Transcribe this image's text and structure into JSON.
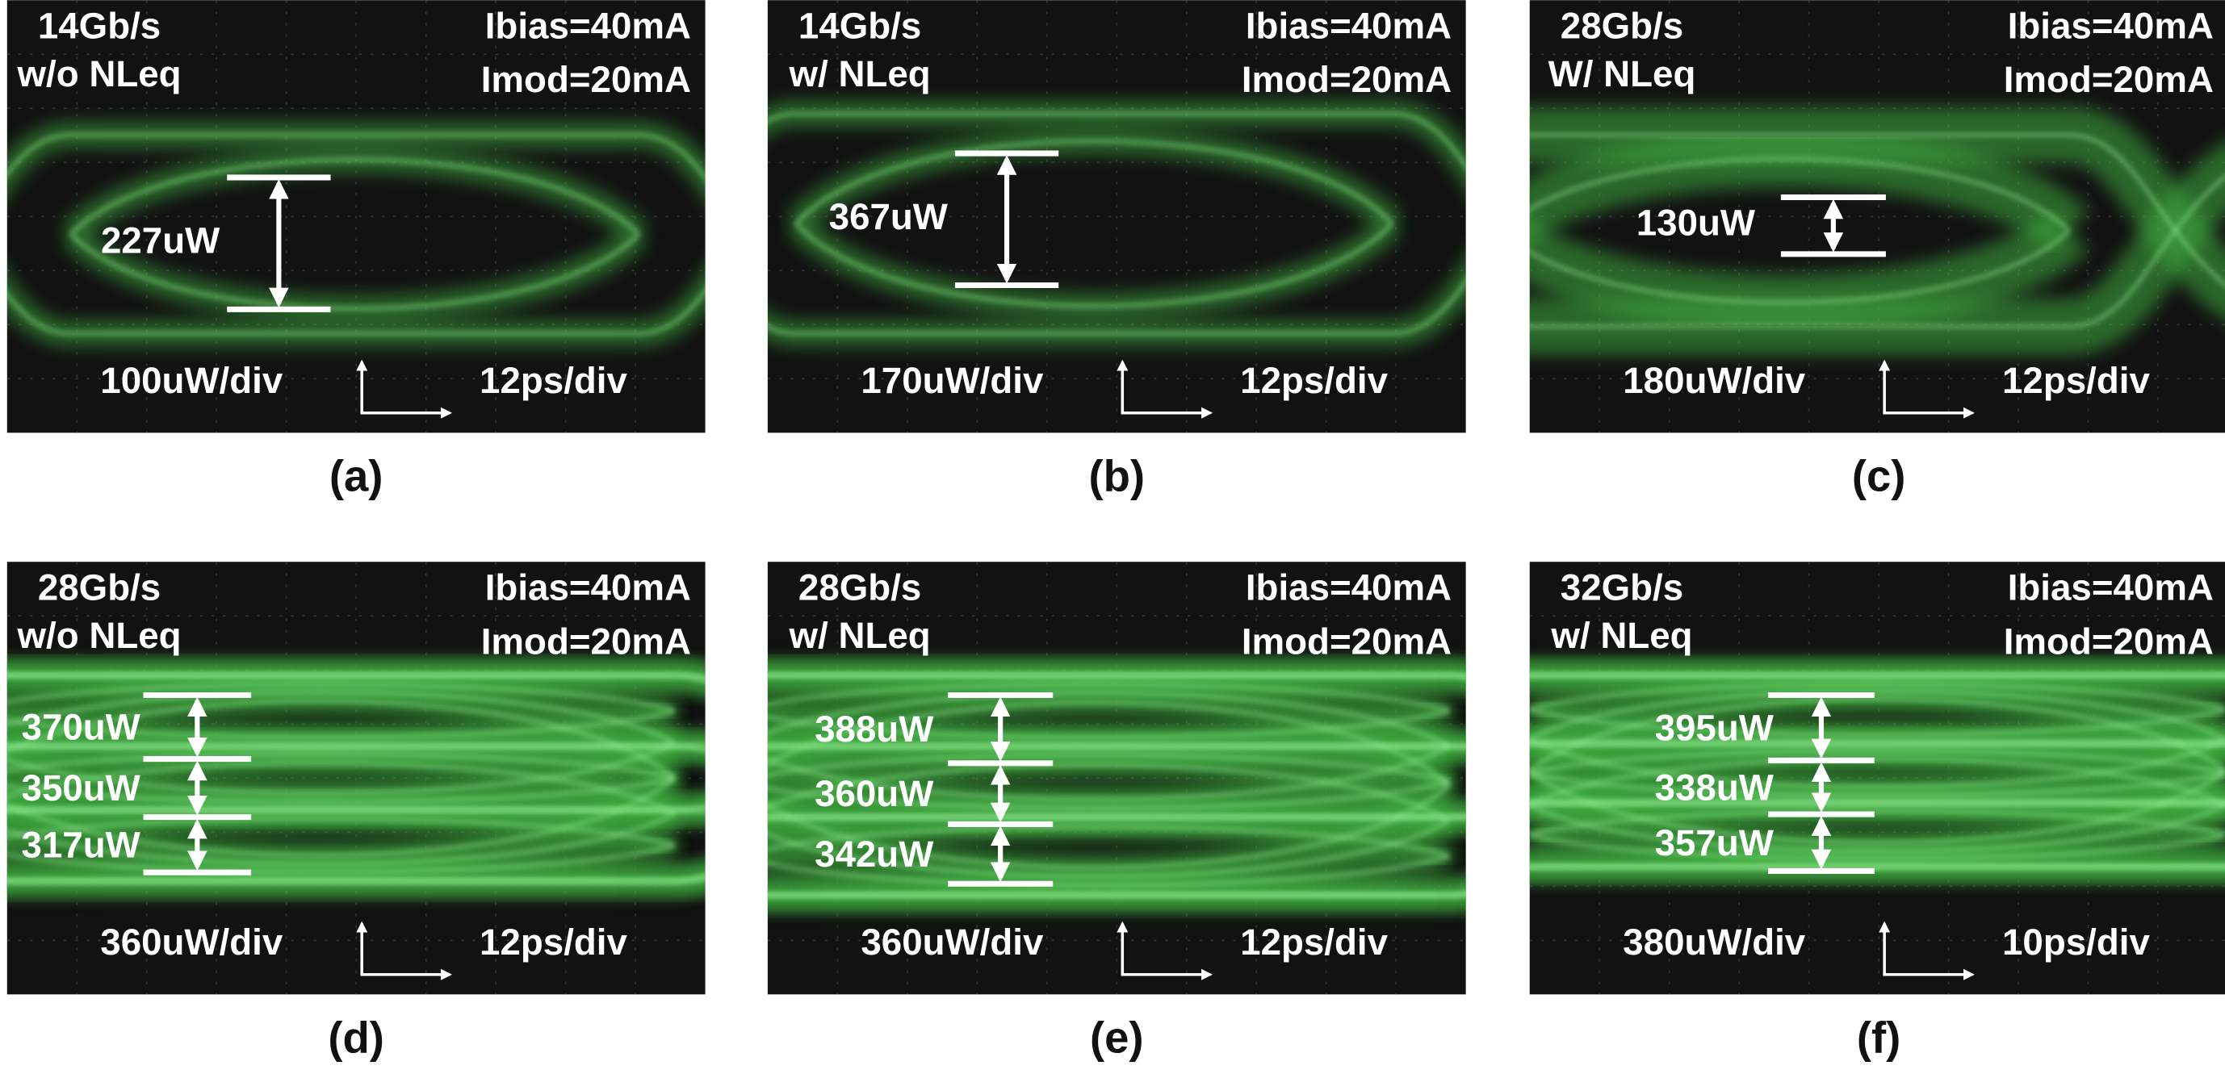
{
  "panels": [
    {
      "label": "(a)",
      "rate": "14Gb/s",
      "mode": "w/o NLeq",
      "ibias": "Ibias=40mA",
      "imod": "Imod=20mA",
      "openings": [
        "227uW"
      ],
      "vertical_scale": "100uW/div",
      "time_scale": "12ps/div"
    },
    {
      "label": "(b)",
      "rate": "14Gb/s",
      "mode": "w/ NLeq",
      "ibias": "Ibias=40mA",
      "imod": "Imod=20mA",
      "openings": [
        "367uW"
      ],
      "vertical_scale": "170uW/div",
      "time_scale": "12ps/div"
    },
    {
      "label": "(c)",
      "rate": "28Gb/s",
      "mode": "W/ NLeq",
      "ibias": "Ibias=40mA",
      "imod": "Imod=20mA",
      "openings": [
        "130uW"
      ],
      "vertical_scale": "180uW/div",
      "time_scale": "12ps/div"
    },
    {
      "label": "(d)",
      "rate": "28Gb/s",
      "mode": "w/o NLeq",
      "ibias": "Ibias=40mA",
      "imod": "Imod=20mA",
      "openings": [
        "370uW",
        "350uW",
        "317uW"
      ],
      "vertical_scale": "360uW/div",
      "time_scale": "12ps/div"
    },
    {
      "label": "(e)",
      "rate": "28Gb/s",
      "mode": "w/ NLeq",
      "ibias": "Ibias=40mA",
      "imod": "Imod=20mA",
      "openings": [
        "388uW",
        "360uW",
        "342uW"
      ],
      "vertical_scale": "360uW/div",
      "time_scale": "12ps/div"
    },
    {
      "label": "(f)",
      "rate": "32Gb/s",
      "mode": "w/ NLeq",
      "ibias": "Ibias=40mA",
      "imod": "Imod=20mA",
      "openings": [
        "395uW",
        "338uW",
        "357uW"
      ],
      "vertical_scale": "380uW/div",
      "time_scale": "10ps/div"
    }
  ]
}
